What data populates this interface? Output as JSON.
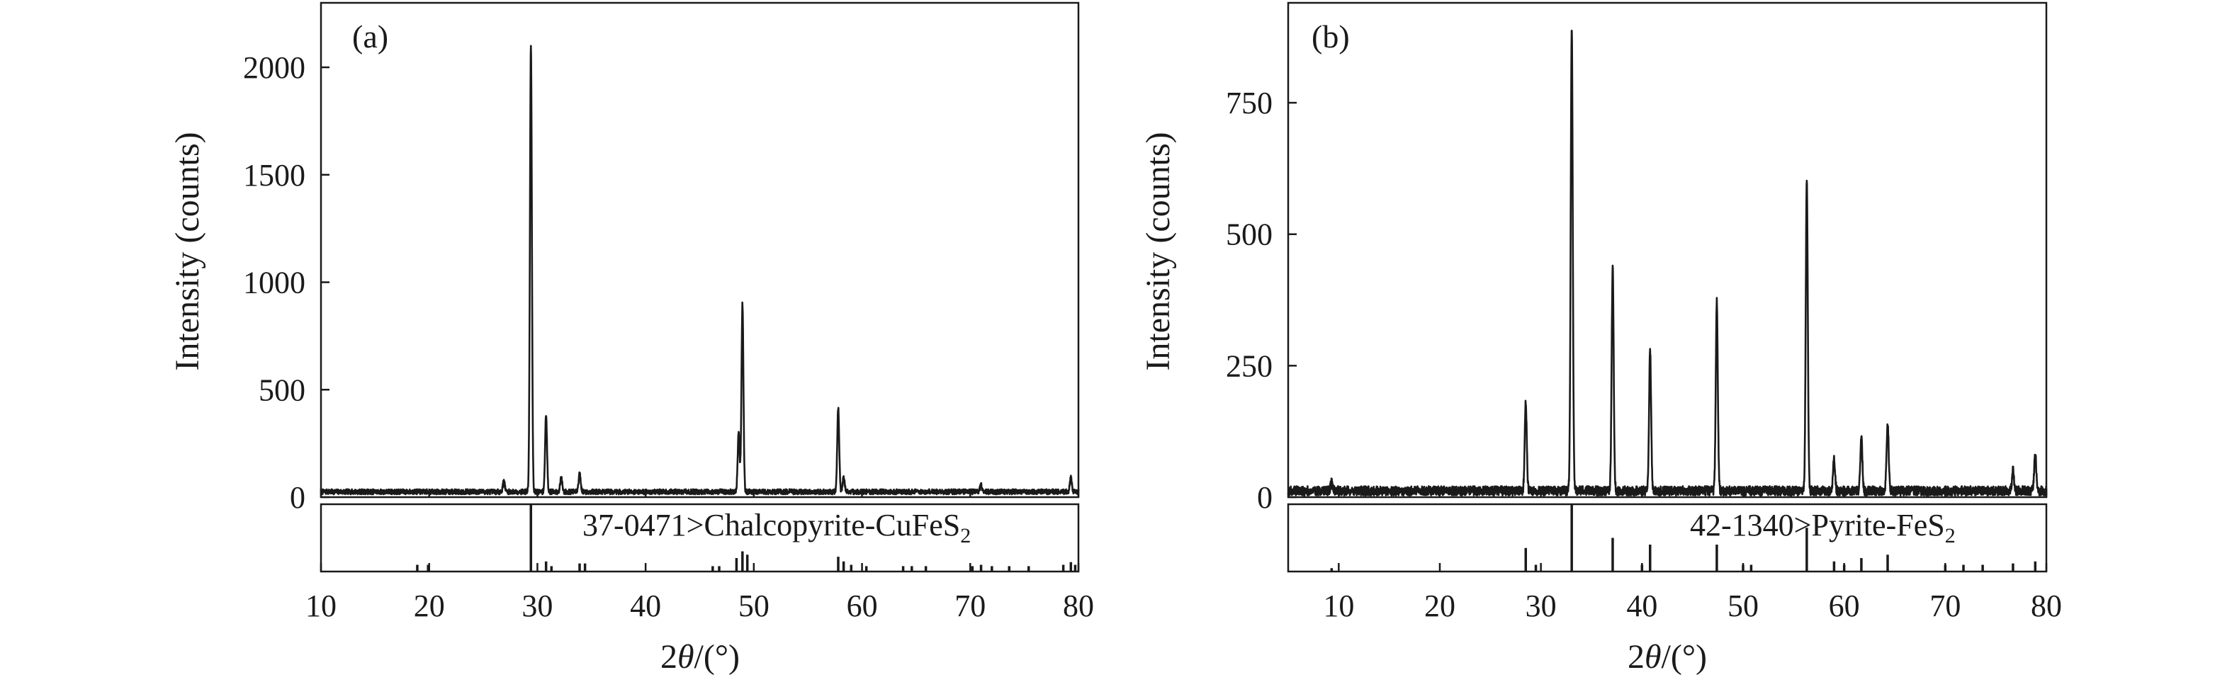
{
  "chart_data": [
    {
      "type": "line",
      "panel_label": "(a)",
      "xlabel_prefix": "2",
      "xlabel_theta": "θ",
      "xlabel_suffix": "/(°)",
      "ylabel": "Intensity (counts)",
      "xlim": [
        10,
        80
      ],
      "ylim": [
        0,
        2300
      ],
      "x_ticks": [
        10,
        20,
        30,
        40,
        50,
        60,
        70,
        80
      ],
      "y_ticks": [
        0,
        500,
        1000,
        1500,
        2000
      ],
      "baseline": 25,
      "peaks": [
        {
          "x": 26.9,
          "y": 75
        },
        {
          "x": 29.4,
          "y": 2100
        },
        {
          "x": 30.8,
          "y": 380
        },
        {
          "x": 32.2,
          "y": 90
        },
        {
          "x": 33.9,
          "y": 110
        },
        {
          "x": 48.6,
          "y": 300
        },
        {
          "x": 48.95,
          "y": 900
        },
        {
          "x": 57.8,
          "y": 415
        },
        {
          "x": 58.3,
          "y": 90
        },
        {
          "x": 71.0,
          "y": 55
        },
        {
          "x": 79.3,
          "y": 90
        }
      ],
      "reference": {
        "label_main": "37-0471>Chalcopyrite-CuFeS",
        "label_sub": "2",
        "ref_max": 100,
        "lines": [
          {
            "x": 18.9,
            "h": 10
          },
          {
            "x": 19.9,
            "h": 10
          },
          {
            "x": 29.4,
            "h": 100
          },
          {
            "x": 30.8,
            "h": 15
          },
          {
            "x": 31.3,
            "h": 8
          },
          {
            "x": 33.9,
            "h": 12
          },
          {
            "x": 34.4,
            "h": 12
          },
          {
            "x": 46.2,
            "h": 8
          },
          {
            "x": 46.8,
            "h": 8
          },
          {
            "x": 48.4,
            "h": 20
          },
          {
            "x": 48.95,
            "h": 30
          },
          {
            "x": 49.4,
            "h": 25
          },
          {
            "x": 57.8,
            "h": 22
          },
          {
            "x": 58.3,
            "h": 15
          },
          {
            "x": 59.0,
            "h": 10
          },
          {
            "x": 60.4,
            "h": 8
          },
          {
            "x": 63.8,
            "h": 8
          },
          {
            "x": 64.6,
            "h": 8
          },
          {
            "x": 65.9,
            "h": 8
          },
          {
            "x": 70.2,
            "h": 8
          },
          {
            "x": 71.0,
            "h": 10
          },
          {
            "x": 72.0,
            "h": 8
          },
          {
            "x": 73.6,
            "h": 8
          },
          {
            "x": 75.4,
            "h": 8
          },
          {
            "x": 78.6,
            "h": 10
          },
          {
            "x": 79.3,
            "h": 14
          },
          {
            "x": 79.7,
            "h": 10
          }
        ]
      }
    },
    {
      "type": "line",
      "panel_label": "(b)",
      "xlabel_prefix": "2",
      "xlabel_theta": "θ",
      "xlabel_suffix": "/(°)",
      "ylabel": "Intensity (counts)",
      "xlim": [
        5,
        80
      ],
      "ylim": [
        0,
        940
      ],
      "x_ticks": [
        10,
        20,
        30,
        40,
        50,
        60,
        70,
        80
      ],
      "y_ticks": [
        0,
        250,
        500,
        750
      ],
      "baseline": 12,
      "peaks": [
        {
          "x": 9.3,
          "y": 28
        },
        {
          "x": 28.5,
          "y": 180
        },
        {
          "x": 33.05,
          "y": 895
        },
        {
          "x": 37.1,
          "y": 440
        },
        {
          "x": 40.8,
          "y": 282
        },
        {
          "x": 47.4,
          "y": 370
        },
        {
          "x": 56.3,
          "y": 605
        },
        {
          "x": 59.0,
          "y": 72
        },
        {
          "x": 61.7,
          "y": 112
        },
        {
          "x": 64.3,
          "y": 143
        },
        {
          "x": 76.7,
          "y": 50
        },
        {
          "x": 78.9,
          "y": 82
        }
      ],
      "reference": {
        "label_main": "42-1340>Pyrite-FeS",
        "label_sub": "2",
        "ref_max": 100,
        "lines": [
          {
            "x": 9.3,
            "h": 5
          },
          {
            "x": 28.5,
            "h": 35
          },
          {
            "x": 29.5,
            "h": 10
          },
          {
            "x": 33.05,
            "h": 100
          },
          {
            "x": 37.1,
            "h": 50
          },
          {
            "x": 40.8,
            "h": 40
          },
          {
            "x": 40.0,
            "h": 10
          },
          {
            "x": 47.4,
            "h": 40
          },
          {
            "x": 50.0,
            "h": 10
          },
          {
            "x": 50.8,
            "h": 10
          },
          {
            "x": 56.3,
            "h": 65
          },
          {
            "x": 59.0,
            "h": 15
          },
          {
            "x": 60.0,
            "h": 10
          },
          {
            "x": 61.7,
            "h": 20
          },
          {
            "x": 64.3,
            "h": 25
          },
          {
            "x": 70.0,
            "h": 10
          },
          {
            "x": 71.8,
            "h": 10
          },
          {
            "x": 73.7,
            "h": 10
          },
          {
            "x": 76.7,
            "h": 12
          },
          {
            "x": 78.9,
            "h": 15
          }
        ]
      }
    }
  ]
}
